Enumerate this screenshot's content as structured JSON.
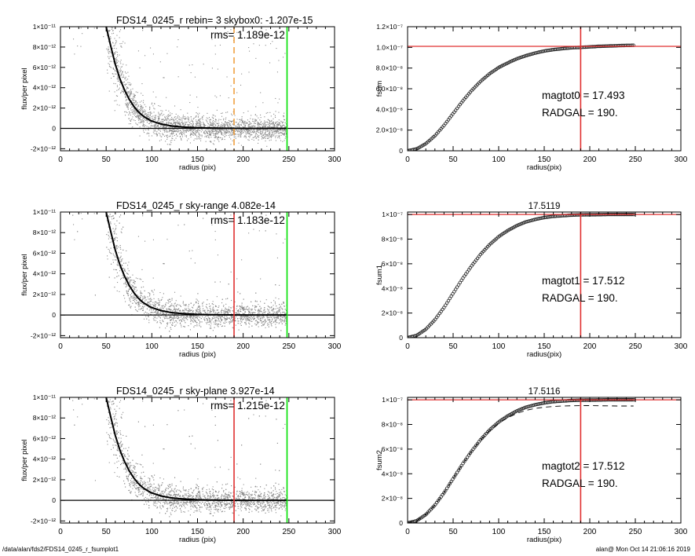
{
  "footer": {
    "path": "/data/alan/fds2/FDS14_0245_r_fsumplot1",
    "stamp": "alan@  Mon Oct 14 21:06:16 2019"
  },
  "colors": {
    "axes": "#000000",
    "scatter": "#8a8a8a",
    "profile": "#000000",
    "green_line": "#00e000",
    "red_line": "#e03030",
    "orange_dashed": "#f0a040",
    "growth_markers": "#222222"
  },
  "chart_data": [
    {
      "id": "profile-top",
      "type": "scatter",
      "title": "FDS14_0245_r rebin= 3    skybox0: -1.207e-15",
      "annotation": "rms= 1.189e-12",
      "xlabel": "radius (pix)",
      "ylabel": "flux/per pixel",
      "xlim": [
        0,
        300
      ],
      "ylim": [
        -2.2e-12,
        1e-11
      ],
      "xticks": [
        0,
        50,
        100,
        150,
        200,
        250,
        300
      ],
      "yticks": [
        {
          "value": 1e-11,
          "label": "1×10⁻¹¹"
        },
        {
          "value": 8e-12,
          "label": "8×10⁻¹²"
        },
        {
          "value": 6e-12,
          "label": "6×10⁻¹²"
        },
        {
          "value": 4e-12,
          "label": "4×10⁻¹²"
        },
        {
          "value": 2e-12,
          "label": "2×10⁻¹²"
        },
        {
          "value": 0,
          "label": "0"
        },
        {
          "value": -2e-12,
          "label": "-2×10⁻¹²"
        }
      ],
      "zero_line": true,
      "vlines": [
        {
          "x": 190,
          "color": "#f0a040",
          "style": "dashed"
        },
        {
          "x": 248,
          "color": "#00e000",
          "style": "solid"
        }
      ],
      "profile": {
        "x": [
          50,
          55,
          60,
          65,
          70,
          75,
          80,
          85,
          90,
          95,
          100,
          110,
          120,
          130,
          140,
          150,
          175,
          200,
          225,
          248
        ],
        "y": [
          1e-11,
          8.1e-12,
          6.3e-12,
          4.9e-12,
          3.8e-12,
          2.9e-12,
          2.2e-12,
          1.65e-12,
          1.25e-12,
          9.5e-13,
          7.2e-13,
          4.3e-13,
          2.6e-13,
          1.6e-13,
          1e-13,
          6e-14,
          2e-14,
          0,
          0,
          0
        ]
      },
      "scatter_points": 3000
    },
    {
      "id": "growth-top",
      "type": "line",
      "title": "",
      "annotation_lines": [
        "magtot0 =  17.493",
        "RADGAL =    190."
      ],
      "xlabel": "radius(pix)",
      "ylabel": "fsum",
      "xlim": [
        0,
        300
      ],
      "ylim": [
        0,
        1.2e-07
      ],
      "xticks": [
        0,
        50,
        100,
        150,
        200,
        250,
        300
      ],
      "yticks": [
        {
          "value": 0,
          "label": "0"
        },
        {
          "value": 2e-08,
          "label": "2.0×10⁻⁸"
        },
        {
          "value": 4e-08,
          "label": "4.0×10⁻⁸"
        },
        {
          "value": 6e-08,
          "label": "6.0×10⁻⁸"
        },
        {
          "value": 8e-08,
          "label": "8.0×10⁻⁸"
        },
        {
          "value": 1e-07,
          "label": "1.0×10⁻⁷"
        },
        {
          "value": 1.2e-07,
          "label": "1.2×10⁻⁷"
        }
      ],
      "hline": {
        "y": 1.01e-07,
        "color": "#e03030"
      },
      "vline": {
        "x": 190,
        "color": "#e03030"
      },
      "curve": {
        "x": [
          0,
          10,
          20,
          30,
          40,
          50,
          60,
          70,
          80,
          90,
          100,
          110,
          120,
          130,
          140,
          150,
          160,
          170,
          180,
          190,
          200,
          210,
          220,
          230,
          240,
          248
        ],
        "y": [
          0,
          1.8e-09,
          6.8e-09,
          1.45e-08,
          2.45e-08,
          3.6e-08,
          4.75e-08,
          5.8e-08,
          6.7e-08,
          7.45e-08,
          8.05e-08,
          8.5e-08,
          8.9e-08,
          9.2e-08,
          9.45e-08,
          9.65e-08,
          9.78e-08,
          9.88e-08,
          9.96e-08,
          1e-07,
          1.005e-07,
          1.01e-07,
          1.013e-07,
          1.016e-07,
          1.019e-07,
          1.02e-07
        ]
      }
    },
    {
      "id": "profile-middle",
      "type": "scatter",
      "title": "FDS14_0245_r sky-range  4.082e-14",
      "annotation": "rms= 1.183e-12",
      "xlabel": "radius (pix)",
      "ylabel": "flux/per pixel",
      "xlim": [
        0,
        300
      ],
      "ylim": [
        -2.2e-12,
        1e-11
      ],
      "xticks": [
        0,
        50,
        100,
        150,
        200,
        250,
        300
      ],
      "yticks": [
        {
          "value": 1e-11,
          "label": "1×10⁻¹¹"
        },
        {
          "value": 8e-12,
          "label": "8×10⁻¹²"
        },
        {
          "value": 6e-12,
          "label": "6×10⁻¹²"
        },
        {
          "value": 4e-12,
          "label": "4×10⁻¹²"
        },
        {
          "value": 2e-12,
          "label": "2×10⁻¹²"
        },
        {
          "value": 0,
          "label": "0"
        },
        {
          "value": -2e-12,
          "label": "-2×10⁻¹²"
        }
      ],
      "zero_line": true,
      "vlines": [
        {
          "x": 190,
          "color": "#e03030",
          "style": "solid"
        },
        {
          "x": 248,
          "color": "#00e000",
          "style": "solid"
        }
      ],
      "profile": {
        "x": [
          50,
          55,
          60,
          65,
          70,
          75,
          80,
          85,
          90,
          95,
          100,
          110,
          120,
          130,
          140,
          150,
          175,
          200,
          225,
          248
        ],
        "y": [
          1e-11,
          8.1e-12,
          6.3e-12,
          4.9e-12,
          3.8e-12,
          2.9e-12,
          2.2e-12,
          1.65e-12,
          1.25e-12,
          9.5e-13,
          7.2e-13,
          4.3e-13,
          2.6e-13,
          1.6e-13,
          1e-13,
          6e-14,
          2e-14,
          0,
          0,
          0
        ]
      },
      "scatter_points": 3000
    },
    {
      "id": "growth-middle",
      "type": "line",
      "title": "17.5119",
      "annotation_lines": [
        "magtot1 =  17.512",
        "RADGAL =    190."
      ],
      "xlabel": "radius(pix)",
      "ylabel": "fsum1",
      "xlim": [
        0,
        300
      ],
      "ylim": [
        0,
        1.02e-07
      ],
      "xticks": [
        0,
        50,
        100,
        150,
        200,
        250,
        300
      ],
      "yticks": [
        {
          "value": 0,
          "label": "0"
        },
        {
          "value": 2e-08,
          "label": "2×10⁻⁸"
        },
        {
          "value": 4e-08,
          "label": "4×10⁻⁸"
        },
        {
          "value": 6e-08,
          "label": "6×10⁻⁸"
        },
        {
          "value": 8e-08,
          "label": "8×10⁻⁸"
        },
        {
          "value": 1e-07,
          "label": "1×10⁻⁷"
        }
      ],
      "hline": {
        "y": 1e-07,
        "color": "#e03030"
      },
      "vline": {
        "x": 190,
        "color": "#e03030"
      },
      "curve": {
        "x": [
          0,
          10,
          20,
          30,
          40,
          50,
          60,
          70,
          80,
          90,
          100,
          110,
          120,
          130,
          140,
          150,
          160,
          170,
          180,
          190,
          200,
          210,
          220,
          230,
          240,
          248
        ],
        "y": [
          0,
          1.8e-09,
          6.8e-09,
          1.45e-08,
          2.45e-08,
          3.6e-08,
          4.75e-08,
          5.8e-08,
          6.75e-08,
          7.55e-08,
          8.2e-08,
          8.7e-08,
          9.1e-08,
          9.4e-08,
          9.6e-08,
          9.75e-08,
          9.85e-08,
          9.9e-08,
          9.95e-08,
          9.97e-08,
          9.98e-08,
          9.99e-08,
          1e-07,
          1e-07,
          1e-07,
          1e-07
        ]
      }
    },
    {
      "id": "profile-bottom",
      "type": "scatter",
      "title": "FDS14_0245_r sky-plane  3.927e-14",
      "annotation": "rms= 1.215e-12",
      "xlabel": "radius (pix)",
      "ylabel": "flux/per pixel",
      "xlim": [
        0,
        300
      ],
      "ylim": [
        -2.2e-12,
        1e-11
      ],
      "xticks": [
        0,
        50,
        100,
        150,
        200,
        250,
        300
      ],
      "yticks": [
        {
          "value": 1e-11,
          "label": "1×10⁻¹¹"
        },
        {
          "value": 8e-12,
          "label": "8×10⁻¹²"
        },
        {
          "value": 6e-12,
          "label": "6×10⁻¹²"
        },
        {
          "value": 4e-12,
          "label": "4×10⁻¹²"
        },
        {
          "value": 2e-12,
          "label": "2×10⁻¹²"
        },
        {
          "value": 0,
          "label": "0"
        },
        {
          "value": -2e-12,
          "label": "-2×10⁻¹²"
        }
      ],
      "zero_line": true,
      "vlines": [
        {
          "x": 190,
          "color": "#e03030",
          "style": "solid"
        },
        {
          "x": 248,
          "color": "#00e000",
          "style": "solid"
        }
      ],
      "profile": {
        "x": [
          50,
          55,
          60,
          65,
          70,
          75,
          80,
          85,
          90,
          95,
          100,
          110,
          120,
          130,
          140,
          150,
          175,
          200,
          225,
          248
        ],
        "y": [
          1e-11,
          8.1e-12,
          6.3e-12,
          4.9e-12,
          3.8e-12,
          2.9e-12,
          2.2e-12,
          1.65e-12,
          1.25e-12,
          9.5e-13,
          7.2e-13,
          4.3e-13,
          2.6e-13,
          1.6e-13,
          1e-13,
          6e-14,
          2e-14,
          0,
          0,
          0
        ]
      },
      "scatter_points": 3000
    },
    {
      "id": "growth-bottom",
      "type": "line",
      "title": "17.5116",
      "annotation_lines": [
        "magtot2 =  17.512",
        "RADGAL =    190."
      ],
      "xlabel": "radius(pix)",
      "ylabel": "fsum2",
      "xlim": [
        0,
        300
      ],
      "ylim": [
        0,
        1.02e-07
      ],
      "xticks": [
        0,
        50,
        100,
        150,
        200,
        250,
        300
      ],
      "yticks": [
        {
          "value": 0,
          "label": "0"
        },
        {
          "value": 2e-08,
          "label": "2×10⁻⁸"
        },
        {
          "value": 4e-08,
          "label": "4×10⁻⁸"
        },
        {
          "value": 6e-08,
          "label": "6×10⁻⁸"
        },
        {
          "value": 8e-08,
          "label": "8×10⁻⁸"
        },
        {
          "value": 1e-07,
          "label": "1×10⁻⁷"
        }
      ],
      "hline": {
        "y": 1e-07,
        "color": "#e03030"
      },
      "vline": {
        "x": 190,
        "color": "#e03030"
      },
      "curve": {
        "x": [
          0,
          10,
          20,
          30,
          40,
          50,
          60,
          70,
          80,
          90,
          100,
          110,
          120,
          130,
          140,
          150,
          160,
          170,
          180,
          190,
          200,
          210,
          220,
          230,
          240,
          248
        ],
        "y": [
          0,
          1.8e-09,
          6.8e-09,
          1.45e-08,
          2.45e-08,
          3.6e-08,
          4.75e-08,
          5.8e-08,
          6.75e-08,
          7.55e-08,
          8.2e-08,
          8.7e-08,
          9.1e-08,
          9.4e-08,
          9.6e-08,
          9.75e-08,
          9.85e-08,
          9.9e-08,
          9.95e-08,
          9.97e-08,
          9.98e-08,
          9.99e-08,
          1e-07,
          1e-07,
          1e-07,
          1e-07
        ]
      },
      "dashed_curve": {
        "x": [
          0,
          10,
          20,
          30,
          40,
          50,
          60,
          70,
          80,
          90,
          100,
          110,
          120,
          130,
          140,
          150,
          160,
          170,
          180,
          190,
          200,
          210,
          220,
          230,
          240,
          248
        ],
        "y": [
          0,
          1.8e-09,
          6.8e-09,
          1.45e-08,
          2.45e-08,
          3.6e-08,
          4.75e-08,
          5.8e-08,
          6.72e-08,
          7.5e-08,
          8.1e-08,
          8.55e-08,
          8.9e-08,
          9.15e-08,
          9.3e-08,
          9.4e-08,
          9.46e-08,
          9.5e-08,
          9.52e-08,
          9.53e-08,
          9.53e-08,
          9.52e-08,
          9.51e-08,
          9.5e-08,
          9.5e-08,
          9.5e-08
        ]
      }
    }
  ]
}
